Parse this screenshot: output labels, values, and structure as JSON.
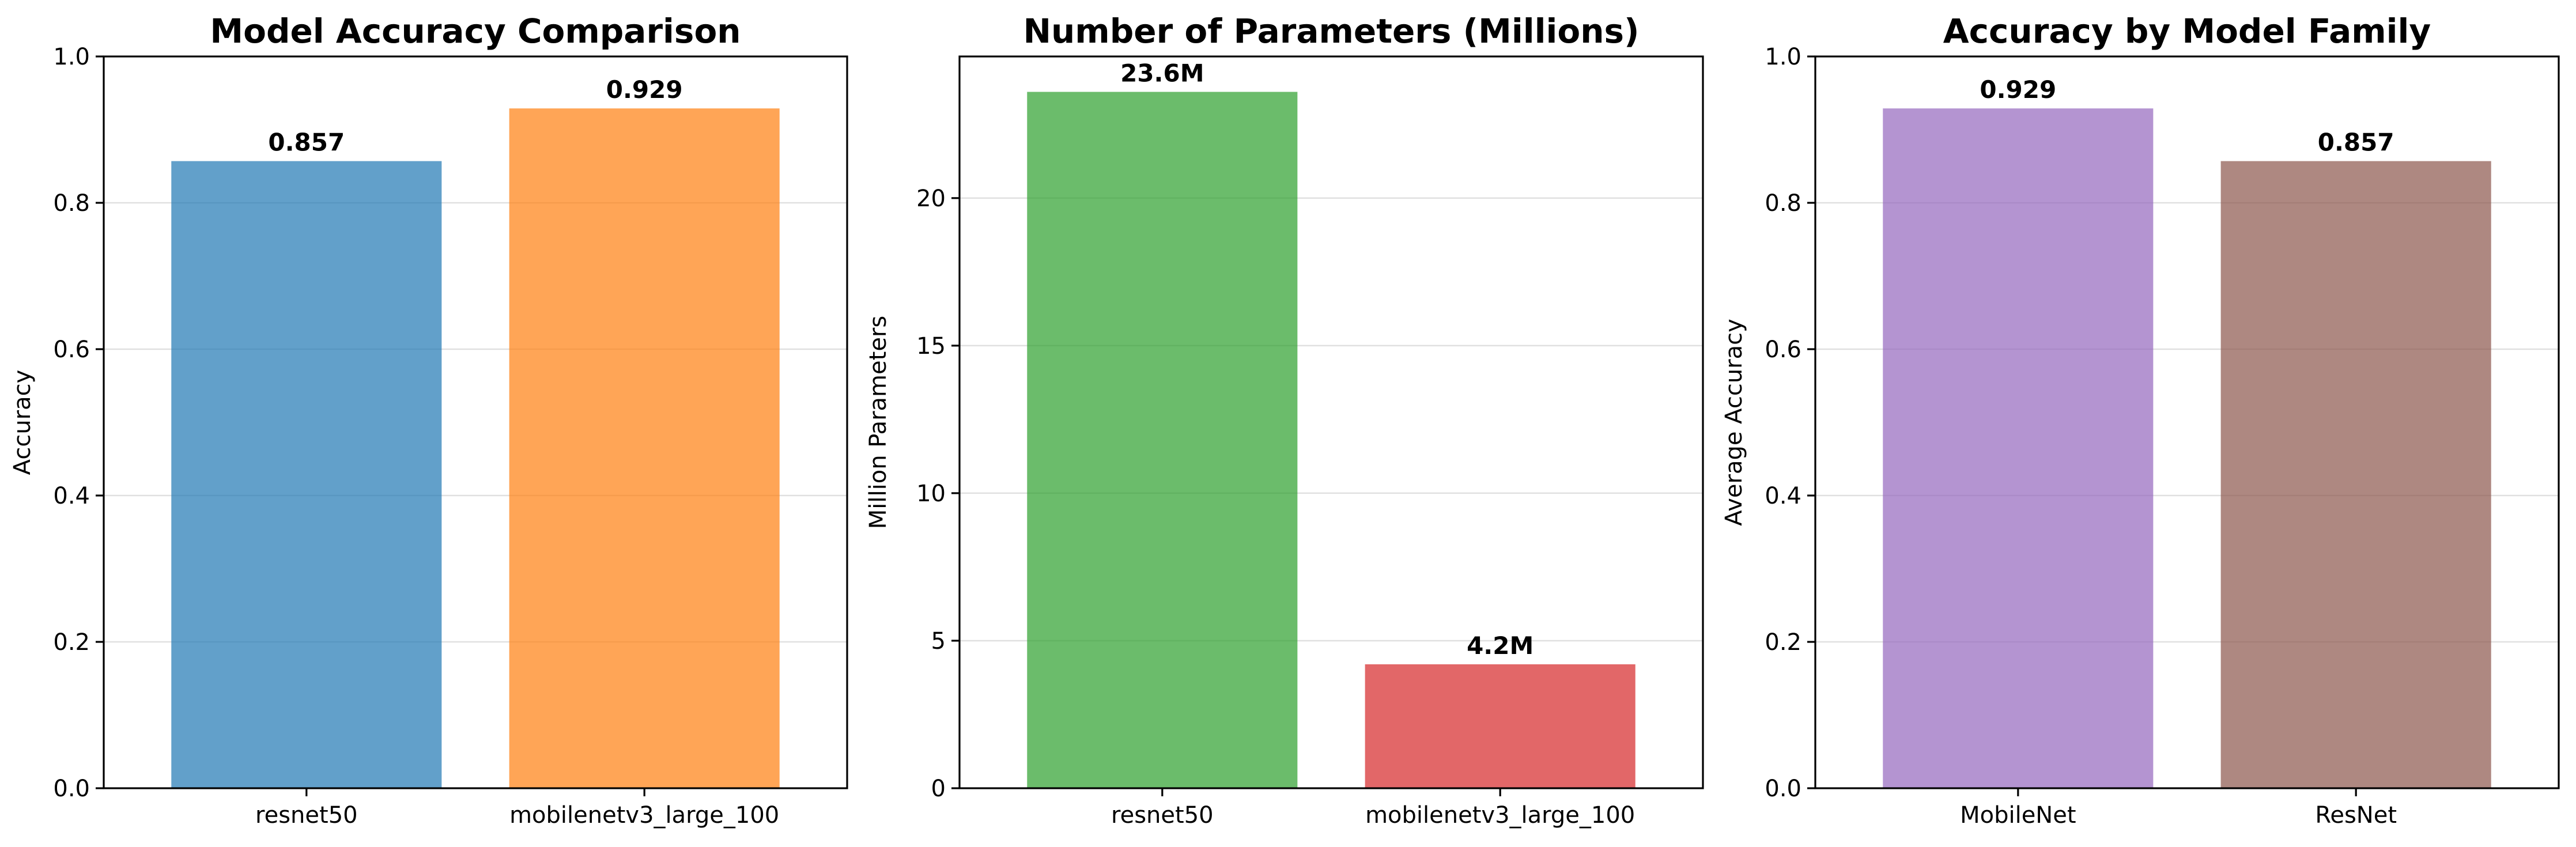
{
  "chart_data": [
    {
      "type": "bar",
      "title": "Model Accuracy Comparison",
      "xlabel": "",
      "ylabel": "Accuracy",
      "categories": [
        "resnet50",
        "mobilenetv3_large_100"
      ],
      "values": [
        0.857,
        0.929
      ],
      "value_labels": [
        "0.857",
        "0.929"
      ],
      "colors": [
        "#1f77b4",
        "#ff7f0e"
      ],
      "bar_alpha": 0.7,
      "ylim": [
        0,
        1.0
      ],
      "yticks": [
        0.0,
        0.2,
        0.4,
        0.6,
        0.8,
        1.0
      ],
      "ytick_labels": [
        "0.0",
        "0.2",
        "0.4",
        "0.6",
        "0.8",
        "1.0"
      ],
      "grid": "y",
      "legend": "none"
    },
    {
      "type": "bar",
      "title": "Number of Parameters (Millions)",
      "xlabel": "",
      "ylabel": "Million Parameters",
      "categories": [
        "resnet50",
        "mobilenetv3_large_100"
      ],
      "values": [
        23.6,
        4.2
      ],
      "value_labels": [
        "23.6M",
        "4.2M"
      ],
      "colors": [
        "#2ca02c",
        "#d62728"
      ],
      "bar_alpha": 0.7,
      "ylim": [
        0,
        24.8
      ],
      "yticks": [
        0,
        5,
        10,
        15,
        20
      ],
      "ytick_labels": [
        "0",
        "5",
        "10",
        "15",
        "20"
      ],
      "grid": "y",
      "legend": "none"
    },
    {
      "type": "bar",
      "title": "Accuracy by Model Family",
      "xlabel": "",
      "ylabel": "Average Accuracy",
      "categories": [
        "MobileNet",
        "ResNet"
      ],
      "values": [
        0.929,
        0.857
      ],
      "value_labels": [
        "0.929",
        "0.857"
      ],
      "colors": [
        "#9467bd",
        "#8c564b"
      ],
      "bar_alpha": 0.7,
      "ylim": [
        0,
        1.0
      ],
      "yticks": [
        0.0,
        0.2,
        0.4,
        0.6,
        0.8,
        1.0
      ],
      "ytick_labels": [
        "0.0",
        "0.2",
        "0.4",
        "0.6",
        "0.8",
        "1.0"
      ],
      "grid": "y",
      "legend": "none"
    }
  ]
}
